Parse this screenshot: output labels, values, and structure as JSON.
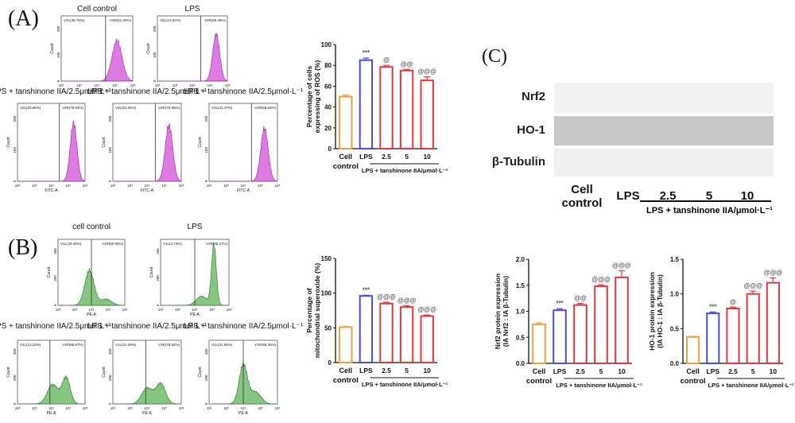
{
  "panels": {
    "a": "(A)",
    "b": "(B)",
    "c": "(C)"
  },
  "colors": {
    "ros_hist": "#d24fd8",
    "ros_hist_edge": "#9b1fa8",
    "mito_hist": "#5fb15a",
    "mito_hist_edge": "#1f7a1f",
    "control": "#f0a040",
    "lps": "#4a4ae8",
    "treat": "#e8363c"
  },
  "flow_a": {
    "xlabel": "FITC-A",
    "ylabel": "Count",
    "x_ticks": [
      "10²",
      "10³",
      "10⁴",
      "10⁵",
      "10⁶"
    ],
    "y_ticks": [
      "0",
      "100",
      "200"
    ],
    "plots": [
      {
        "title": "Cell control",
        "gate_left": "V2L(48.75%)",
        "gate_right": "V2R(51.25%)"
      },
      {
        "title": "LPS",
        "gate_left": "V2L(14.52%)",
        "gate_right": "V2R(85.48%)"
      },
      {
        "title": "LPS + tanshinone IIA/2.5μmol·L⁻¹",
        "gate_left": "V2L(20.96%)",
        "gate_right": "V2R(79.04%)"
      },
      {
        "title": "LPS + tanshinone IIA/2.5μmol·L⁻¹",
        "gate_left": "V2L(24.05%)",
        "gate_right": "V2R(75.95%)"
      },
      {
        "title": "LPS + tanshinone IIA/2.5μmol·L⁻¹",
        "gate_left": "V2L(31.47%)",
        "gate_right": "V2R(68.53%)"
      }
    ]
  },
  "flow_b": {
    "xlabel": "PE-A",
    "ylabel": "Count",
    "x_ticks": [
      "10²",
      "10³",
      "10⁴",
      "10⁵",
      "10⁶"
    ],
    "y_ticks": [
      "0",
      "200",
      "400"
    ],
    "plots": [
      {
        "title": "cell control",
        "gate_left": "V1L(49.45%)",
        "gate_right": "V1R(50.55%)"
      },
      {
        "title": "LPS",
        "gate_left": "V1L(4.73%)",
        "gate_right": "V1R(95.27%)"
      },
      {
        "title": "LPS + tanshinone IIA/2.5μmol·L⁻¹",
        "gate_left": "V1L(13.33%)",
        "gate_right": "V1R(86.67%)"
      },
      {
        "title": "LPS + tanshinone IIA/2.5μmol·L⁻¹",
        "gate_left": "V1L(21.48%)",
        "gate_right": "V1R(78.52%)"
      },
      {
        "title": "LPS + tanshinone IIA/2.5μmol·L⁻¹",
        "gate_left": "V1L(31.65%)",
        "gate_right": "V1R(68.35%)"
      }
    ]
  },
  "blot": {
    "rows": [
      "Nrf2",
      "HO-1",
      "β-Tubulin"
    ],
    "lanes": [
      "Cell control",
      "LPS",
      "2.5",
      "5",
      "10"
    ],
    "group_label": "LPS + tanshinone IIA/μmol·L⁻¹"
  },
  "chart_data": [
    {
      "type": "bar",
      "id": "ros",
      "title": "",
      "ylabel": [
        "Percentage of cells",
        "expressing of ROS (%)"
      ],
      "categories": [
        "Cell control",
        "LPS",
        "2.5",
        "5",
        "10"
      ],
      "group_label": "LPS + tanshinone IIA/μmol·L⁻¹",
      "values": [
        50,
        85,
        78.5,
        75,
        65.5
      ],
      "errors": [
        1.5,
        2,
        1.5,
        1,
        3.5
      ],
      "annotations": [
        "",
        "***",
        "@",
        "@@",
        "@@@"
      ],
      "ylim": [
        0,
        100
      ],
      "yticks": [
        "0",
        "20",
        "40",
        "60",
        "80",
        "100"
      ]
    },
    {
      "type": "bar",
      "id": "mito",
      "title": "",
      "ylabel": [
        "Percentage of",
        "mitochondrial superoxide (%)"
      ],
      "categories": [
        "Cell control",
        "LPS",
        "2.5",
        "5",
        "10"
      ],
      "group_label": "LPS + tanshinone IIA/μmol·L⁻¹",
      "values": [
        51,
        96,
        85,
        80,
        67
      ],
      "errors": [
        1,
        1,
        2,
        2,
        1.5
      ],
      "annotations": [
        "",
        "***",
        "@@@",
        "@@@",
        "@@@"
      ],
      "ylim": [
        0,
        150
      ],
      "yticks": [
        "0",
        "50",
        "100",
        "150"
      ]
    },
    {
      "type": "bar",
      "id": "nrf2",
      "title": "",
      "ylabel": [
        "Nrf2 protein expression",
        "(IA Nrf2 : IA β-Tubulin)"
      ],
      "categories": [
        "Cell control",
        "LPS",
        "2.5",
        "5",
        "10"
      ],
      "group_label": "LPS + tanshinone IIA/μmol·L⁻¹",
      "values": [
        0.75,
        1.02,
        1.12,
        1.48,
        1.65
      ],
      "errors": [
        0.03,
        0.03,
        0.03,
        0.03,
        0.13
      ],
      "annotations": [
        "",
        "***",
        "@@",
        "@@@",
        "@@@"
      ],
      "ylim": [
        0,
        2.0
      ],
      "yticks": [
        "0.0",
        "0.5",
        "1.0",
        "1.5",
        "2.0"
      ]
    },
    {
      "type": "bar",
      "id": "ho1",
      "title": "",
      "ylabel": [
        "HO-1 protein expression",
        "(IA HO-1 : IA β-Tubulin)"
      ],
      "categories": [
        "Cell control",
        "LPS",
        "2.5",
        "5",
        "10"
      ],
      "group_label": "LPS + tanshinone IIA/μmol·L⁻¹",
      "values": [
        0.38,
        0.72,
        0.79,
        1.0,
        1.16
      ],
      "errors": [
        0.01,
        0.02,
        0.02,
        0.04,
        0.07
      ],
      "annotations": [
        "",
        "***",
        "@",
        "@@@",
        "@@@"
      ],
      "ylim": [
        0,
        1.5
      ],
      "yticks": [
        "0.0",
        "0.5",
        "1.0",
        "1.5"
      ]
    }
  ]
}
